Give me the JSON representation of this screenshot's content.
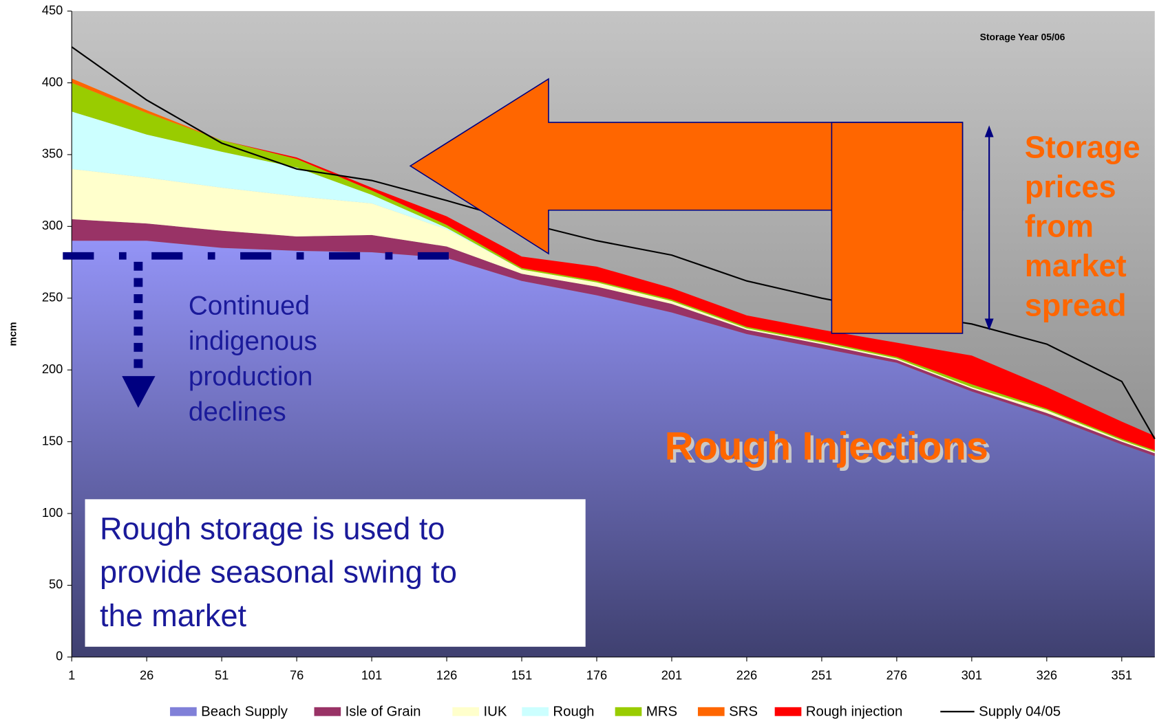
{
  "chart_data": {
    "type": "stacked-area",
    "subtitle": "Storage Year 05/06",
    "y_label": "mcm",
    "x": [
      1,
      26,
      51,
      76,
      101,
      126,
      151,
      176,
      201,
      226,
      251,
      276,
      301,
      326,
      351,
      362
    ],
    "series": [
      {
        "name": "Beach Supply",
        "color": "#9999ff",
        "values": [
          290,
          290,
          285,
          283,
          282,
          278,
          262,
          252,
          240,
          225,
          215,
          205,
          185,
          168,
          148,
          140
        ]
      },
      {
        "name": "Isle of Grain",
        "color": "#993366",
        "values": [
          15,
          12,
          12,
          10,
          12,
          8,
          5,
          6,
          6,
          3,
          3,
          2,
          2,
          2,
          2,
          2
        ]
      },
      {
        "name": "IUK",
        "color": "#ffffcc",
        "values": [
          35,
          32,
          30,
          28,
          22,
          12,
          3,
          3,
          2,
          1,
          1,
          1,
          1,
          2,
          1,
          1
        ]
      },
      {
        "name": "Rough",
        "color": "#ccffff",
        "values": [
          40,
          30,
          25,
          20,
          6,
          1,
          0,
          0,
          0,
          0,
          0,
          0,
          0,
          0,
          0,
          0
        ]
      },
      {
        "name": "MRS",
        "color": "#99cc00",
        "values": [
          20,
          15,
          8,
          6,
          3,
          2,
          1,
          1,
          1,
          1,
          1,
          1,
          2,
          1,
          1,
          1
        ]
      },
      {
        "name": "SRS",
        "color": "#ff6600",
        "values": [
          3,
          2,
          0,
          0,
          0,
          0,
          0,
          0,
          0,
          0,
          0,
          0,
          0,
          0,
          0,
          0
        ]
      },
      {
        "name": "Rough injection",
        "color": "#ff0000",
        "values": [
          0,
          0,
          0,
          1,
          2,
          6,
          8,
          10,
          8,
          8,
          8,
          10,
          20,
          15,
          12,
          10
        ]
      },
      {
        "name": "Supply 04/05",
        "color": "#000000",
        "kind": "line",
        "values": [
          425,
          388,
          358,
          340,
          332,
          318,
          303,
          290,
          280,
          262,
          250,
          240,
          232,
          218,
          192,
          152
        ]
      }
    ],
    "xlim": [
      1,
      362
    ],
    "xticks": [
      1,
      26,
      51,
      76,
      101,
      126,
      151,
      176,
      201,
      226,
      251,
      276,
      301,
      326,
      351
    ],
    "ylim": [
      0,
      450
    ],
    "yticks": [
      0,
      50,
      100,
      150,
      200,
      250,
      300,
      350,
      400,
      450
    ],
    "annotations": {
      "decline": [
        "Continued",
        "indigenous",
        "production",
        "declines"
      ],
      "swing": [
        "Rough storage is used to",
        "provide seasonal swing to",
        "the market"
      ],
      "injections": "Rough Injections",
      "prices": [
        "Storage",
        "prices",
        "from",
        "market",
        "spread"
      ]
    }
  }
}
